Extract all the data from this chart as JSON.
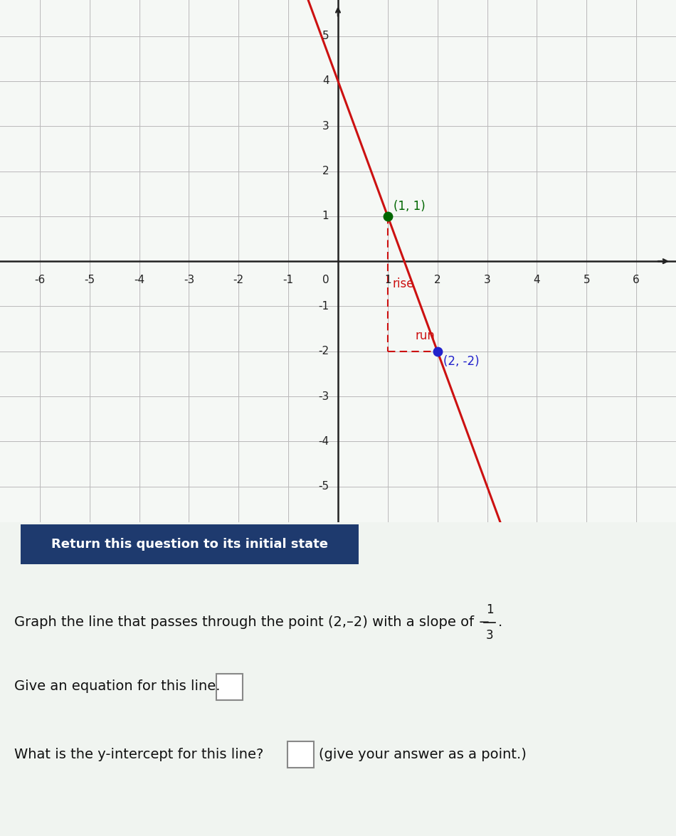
{
  "bg_color": "#f0f4f0",
  "graph_bg": "#f5f8f5",
  "grid_color": "#cccccc",
  "axis_color": "#222222",
  "x_min": -6.8,
  "x_max": 6.8,
  "y_min": -5.8,
  "y_max": 5.8,
  "x_ticks": [
    -6,
    -5,
    -4,
    -3,
    -2,
    -1,
    1,
    2,
    3,
    4,
    5,
    6
  ],
  "y_ticks": [
    -5,
    -4,
    -3,
    -2,
    -1,
    1,
    2,
    3,
    4,
    5
  ],
  "line_color": "#cc1111",
  "line_x_start": 0.333,
  "line_x_end": 4.667,
  "slope": -3,
  "intercept": 4,
  "point1": [
    1,
    1
  ],
  "point1_color": "#006600",
  "point1_label": "(1, 1)",
  "point2": [
    2,
    -2
  ],
  "point2_color": "#2222cc",
  "point2_label": "(2, -2)",
  "rise_label": "rise",
  "run_label": "run",
  "dashed_color": "#cc1111",
  "button_text": "Return this question to its initial state",
  "button_bg": "#1e3a6e",
  "button_text_color": "#ffffff",
  "answer_box_color": "#dddddd",
  "text_color": "#111111"
}
